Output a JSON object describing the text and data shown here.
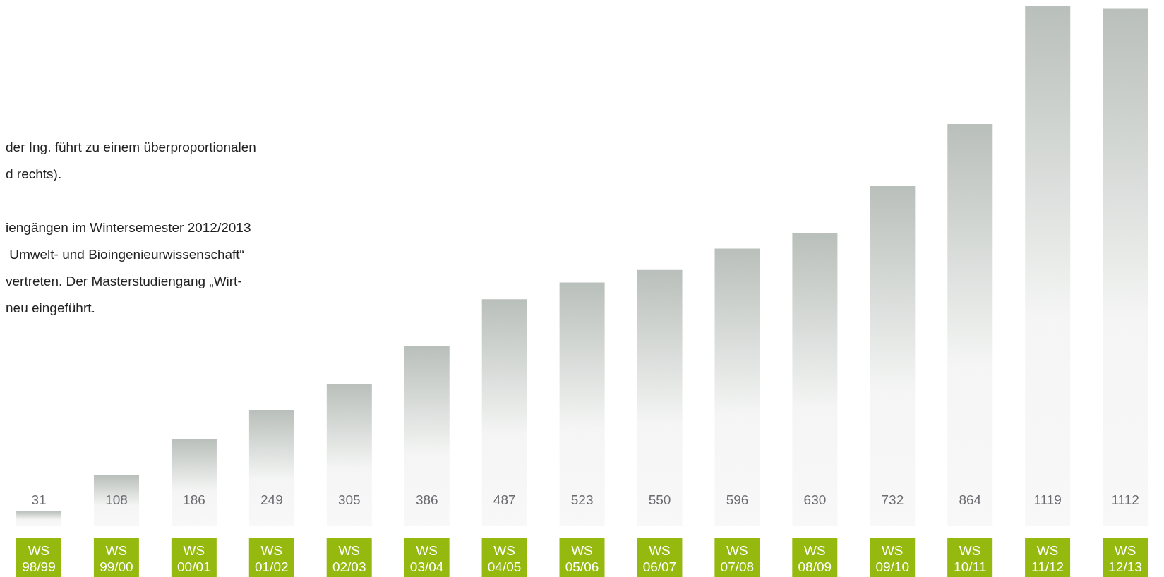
{
  "chart_data": {
    "type": "bar",
    "categories": [
      "WS 98/99",
      "WS 99/00",
      "WS 00/01",
      "WS 01/02",
      "WS 02/03",
      "WS 03/04",
      "WS 04/05",
      "WS 05/06",
      "WS 06/07",
      "WS 07/08",
      "WS 08/09",
      "WS 09/10",
      "WS 10/11",
      "WS 11/12",
      "WS 12/13"
    ],
    "values": [
      31,
      108,
      186,
      249,
      305,
      386,
      487,
      523,
      550,
      596,
      630,
      732,
      864,
      1119,
      1112
    ],
    "color": "#b9bfbb",
    "data_labels": true,
    "annotations": [
      "der Ing. führt zu einem überproportionalen\nd rechts).",
      "iengängen im Wintersemester 2012/2013\n Umwelt- und Bioingenieurwissenschaft“\nvertreten. Der Masterstudiengang „Wirt-\nneu eingeführt."
    ]
  }
}
